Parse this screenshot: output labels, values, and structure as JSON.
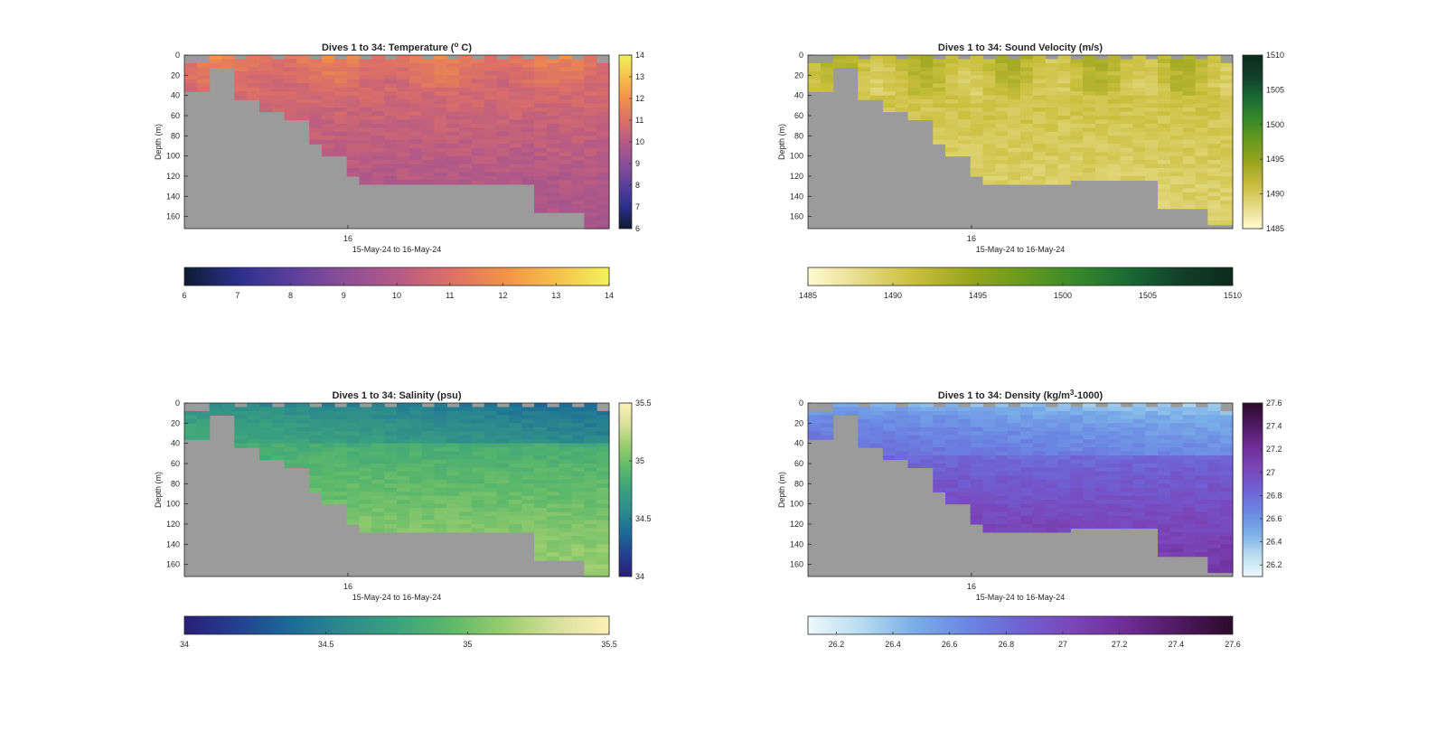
{
  "figure": {
    "panels": [
      {
        "id": "temperature",
        "title_prefix": "Dives 1 to 34: Temperature (",
        "title_sup": "o",
        "title_suffix": " C)",
        "colormap": [
          "#0d1b2e",
          "#2b2f8c",
          "#5a3f9c",
          "#8a4f96",
          "#b55a86",
          "#dc6f67",
          "#f2914a",
          "#f5c04a",
          "#f1f35a"
        ],
        "clim": [
          6,
          14
        ],
        "colorbar_ticks": [
          "6",
          "7",
          "8",
          "9",
          "10",
          "11",
          "12",
          "13",
          "14"
        ],
        "surface_pattern": "warm-top"
      },
      {
        "id": "sound-velocity",
        "title_prefix": "Dives 1 to 34: Sound Velocity (m/s)",
        "title_sup": "",
        "title_suffix": "",
        "colormap": [
          "#fefbd2",
          "#e6da88",
          "#c9bf3c",
          "#9aa61c",
          "#6b9a1e",
          "#3a8a2a",
          "#1a6b35",
          "#12402a",
          "#0c2a1c"
        ],
        "clim": [
          1485,
          1510
        ],
        "colorbar_ticks": [
          "1485",
          "1490",
          "1495",
          "1500",
          "1505",
          "1510"
        ],
        "surface_pattern": "fast-top"
      },
      {
        "id": "salinity",
        "title_prefix": "Dives 1 to 34: Salinity (psu)",
        "title_sup": "",
        "title_suffix": "",
        "colormap": [
          "#2a1e78",
          "#24408f",
          "#1b6b98",
          "#2c8a8d",
          "#3aa27e",
          "#5cb86a",
          "#98cc6e",
          "#d7e09a",
          "#fdf1b8"
        ],
        "clim": [
          34,
          35.5
        ],
        "colorbar_ticks": [
          "34",
          "34.5",
          "35",
          "35.5"
        ],
        "surface_pattern": "fresh-top"
      },
      {
        "id": "density",
        "title_prefix": "Dives 1 to 34: Density (kg/m",
        "title_sup": "3",
        "title_suffix": "-1000)",
        "colormap": [
          "#eef8fb",
          "#b8dcef",
          "#7aaee8",
          "#6b86e2",
          "#6f62d4",
          "#7a45b8",
          "#6e2d95",
          "#4e1a60",
          "#2b0a2a"
        ],
        "clim": [
          26.1,
          27.6
        ],
        "colorbar_ticks": [
          "26.2",
          "26.4",
          "26.6",
          "26.8",
          "27",
          "27.2",
          "27.4",
          "27.6"
        ],
        "surface_pattern": "light-top"
      }
    ],
    "ylabel": "Depth (m)",
    "depth_ticks": [
      "0",
      "20",
      "40",
      "60",
      "80",
      "100",
      "120",
      "140",
      "160"
    ],
    "depth_range": [
      0,
      172
    ],
    "xtick_label": "16",
    "xlabel": "15-May-24 to 16-May-24",
    "missing_color": "#9b9b9b"
  },
  "chart_data": [
    {
      "type": "heatmap",
      "title": "Dives 1 to 34: Temperature (o C)",
      "xlabel": "15-May-24 to 16-May-24",
      "ylabel": "Depth (m)",
      "x_ticks": [
        "16"
      ],
      "ylim": [
        0,
        172
      ],
      "y_reversed": true,
      "clim": [
        6,
        14
      ],
      "profiles": 34,
      "surface_value": 11.5,
      "bottom_value": 9.6
    },
    {
      "type": "heatmap",
      "title": "Dives 1 to 34: Sound Velocity (m/s)",
      "xlabel": "15-May-24 to 16-May-24",
      "ylabel": "Depth (m)",
      "x_ticks": [
        "16"
      ],
      "ylim": [
        0,
        172
      ],
      "y_reversed": true,
      "clim": [
        1485,
        1510
      ],
      "profiles": 34,
      "surface_value": 1492,
      "bottom_value": 1489
    },
    {
      "type": "heatmap",
      "title": "Dives 1 to 34: Salinity (psu)",
      "xlabel": "15-May-24 to 16-May-24",
      "ylabel": "Depth (m)",
      "x_ticks": [
        "16"
      ],
      "ylim": [
        0,
        172
      ],
      "y_reversed": true,
      "clim": [
        34,
        35.5
      ],
      "profiles": 34,
      "surface_value": 34.6,
      "bottom_value": 35.15
    },
    {
      "type": "heatmap",
      "title": "Dives 1 to 34: Density (kg/m3-1000)",
      "xlabel": "15-May-24 to 16-May-24",
      "ylabel": "Depth (m)",
      "x_ticks": [
        "16"
      ],
      "ylim": [
        0,
        172
      ],
      "y_reversed": true,
      "clim": [
        26.1,
        27.6
      ],
      "profiles": 34,
      "surface_value": 26.5,
      "bottom_value": 27.15
    }
  ]
}
